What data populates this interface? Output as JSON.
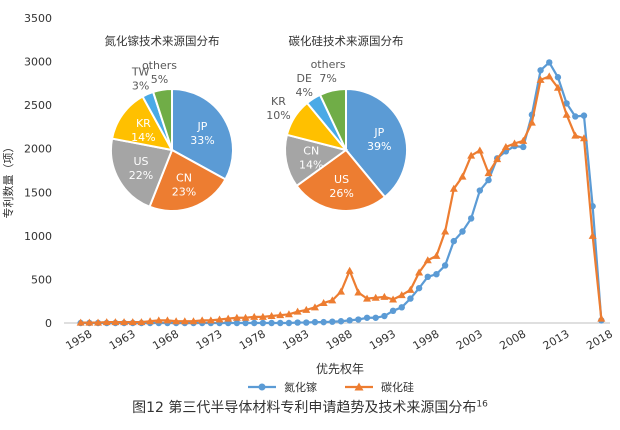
{
  "chart_data": [
    {
      "type": "line",
      "xlabel": "优先权年",
      "ylabel": "专利数量（项）",
      "xlim": [
        1957,
        2019
      ],
      "ylim": [
        0,
        3500
      ],
      "yticks": [
        0,
        500,
        1000,
        1500,
        2000,
        2500,
        3000,
        3500
      ],
      "xticks": [
        1958,
        1963,
        1968,
        1973,
        1978,
        1983,
        1988,
        1993,
        1998,
        2003,
        2008,
        2013,
        2018
      ],
      "grid": false,
      "legend": "bottom",
      "x": [
        1958,
        1959,
        1960,
        1961,
        1962,
        1963,
        1964,
        1965,
        1966,
        1967,
        1968,
        1969,
        1970,
        1971,
        1972,
        1973,
        1974,
        1975,
        1976,
        1977,
        1978,
        1979,
        1980,
        1981,
        1982,
        1983,
        1984,
        1985,
        1986,
        1987,
        1988,
        1989,
        1990,
        1991,
        1992,
        1993,
        1994,
        1995,
        1996,
        1997,
        1998,
        1999,
        2000,
        2001,
        2002,
        2003,
        2004,
        2005,
        2006,
        2007,
        2008,
        2009,
        2010,
        2011,
        2012,
        2013,
        2014,
        2015,
        2016,
        2017,
        2018
      ],
      "series": [
        {
          "name": "氮化镓",
          "color": "#5b9bd5",
          "marker": "circle",
          "values": [
            0,
            0,
            0,
            0,
            0,
            0,
            0,
            0,
            0,
            0,
            0,
            0,
            0,
            0,
            0,
            0,
            0,
            0,
            0,
            0,
            0,
            0,
            0,
            0,
            0,
            5,
            5,
            10,
            10,
            15,
            20,
            30,
            40,
            60,
            60,
            80,
            140,
            180,
            280,
            400,
            530,
            560,
            660,
            940,
            1050,
            1200,
            1520,
            1640,
            1890,
            1970,
            2030,
            2020,
            2390,
            2900,
            2990,
            2820,
            2520,
            2370,
            2380,
            1340,
            30
          ]
        },
        {
          "name": "碳化硅",
          "color": "#ed7d31",
          "marker": "triangle",
          "values": [
            5,
            5,
            5,
            10,
            10,
            10,
            10,
            10,
            20,
            30,
            30,
            20,
            20,
            20,
            30,
            30,
            40,
            50,
            60,
            60,
            70,
            70,
            80,
            90,
            100,
            130,
            150,
            180,
            230,
            260,
            360,
            600,
            350,
            280,
            290,
            300,
            270,
            320,
            380,
            580,
            720,
            770,
            1050,
            1540,
            1680,
            1920,
            1980,
            1720,
            1880,
            2020,
            2060,
            2090,
            2300,
            2790,
            2830,
            2700,
            2390,
            2150,
            2120,
            1000,
            50
          ]
        }
      ]
    },
    {
      "type": "pie",
      "title": "氮化镓技术来源国分布",
      "slices": [
        {
          "label": "JP",
          "value": 33,
          "color": "#5b9bd5"
        },
        {
          "label": "CN",
          "value": 23,
          "color": "#ed7d31"
        },
        {
          "label": "US",
          "value": 22,
          "color": "#a5a5a5"
        },
        {
          "label": "KR",
          "value": 14,
          "color": "#ffc000"
        },
        {
          "label": "TW",
          "value": 3,
          "color": "#4aaae6"
        },
        {
          "label": "others",
          "value": 5,
          "color": "#70ad47"
        }
      ]
    },
    {
      "type": "pie",
      "title": "碳化硅技术来源国分布",
      "slices": [
        {
          "label": "JP",
          "value": 39,
          "color": "#5b9bd5"
        },
        {
          "label": "US",
          "value": 26,
          "color": "#ed7d31"
        },
        {
          "label": "CN",
          "value": 14,
          "color": "#a5a5a5"
        },
        {
          "label": "KR",
          "value": 10,
          "color": "#ffc000"
        },
        {
          "label": "DE",
          "value": 4,
          "color": "#4aaae6"
        },
        {
          "label": "others",
          "value": 7,
          "color": "#70ad47"
        }
      ]
    }
  ],
  "caption": {
    "text": "图12  第三代半导体材料专利申请趋势及技术来源国分布",
    "ref": "16"
  }
}
